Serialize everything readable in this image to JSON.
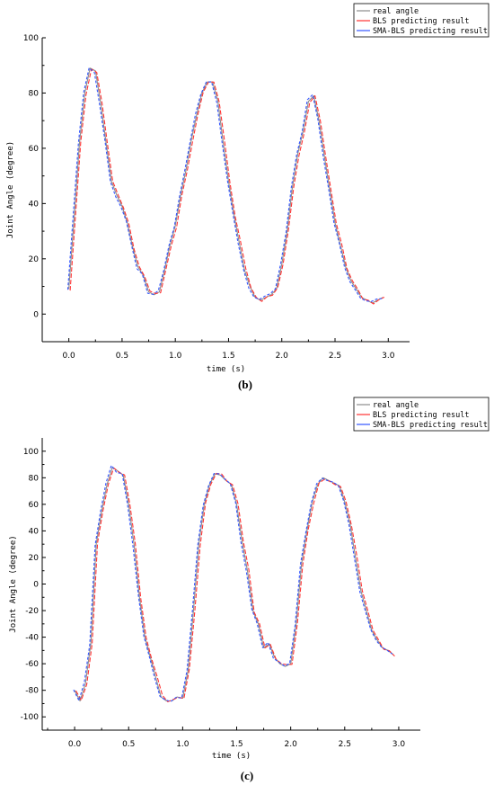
{
  "chart_data": [
    {
      "type": "line",
      "caption": "(b)",
      "xlabel": "time (s)",
      "ylabel": "Joint Angle (degree)",
      "xlim": [
        -0.25,
        3.2
      ],
      "ylim": [
        -10,
        100
      ],
      "xticks": [
        0.0,
        0.5,
        1.0,
        1.5,
        2.0,
        2.5,
        3.0
      ],
      "xtick_labels": [
        "0.0",
        "0.5",
        "1.0",
        "1.5",
        "2.0",
        "2.5",
        "3.0"
      ],
      "yticks": [
        0,
        20,
        40,
        60,
        80,
        100
      ],
      "ytick_labels": [
        "0",
        "20",
        "40",
        "60",
        "80",
        "100"
      ],
      "legend_position": "top-right",
      "series": [
        {
          "name": "real angle",
          "color": "#8c8c8c"
        },
        {
          "name": "BLS predicting result",
          "color": "#ff3333"
        },
        {
          "name": "SMA-BLS predicting result",
          "color": "#3355ff"
        }
      ],
      "x": [
        0.0,
        0.05,
        0.1,
        0.15,
        0.2,
        0.25,
        0.3,
        0.35,
        0.4,
        0.45,
        0.5,
        0.55,
        0.6,
        0.65,
        0.7,
        0.75,
        0.8,
        0.85,
        0.9,
        0.95,
        1.0,
        1.05,
        1.1,
        1.15,
        1.2,
        1.25,
        1.3,
        1.35,
        1.4,
        1.45,
        1.5,
        1.55,
        1.6,
        1.65,
        1.7,
        1.75,
        1.8,
        1.85,
        1.9,
        1.95,
        2.0,
        2.05,
        2.1,
        2.15,
        2.2,
        2.25,
        2.3,
        2.35,
        2.4,
        2.45,
        2.5,
        2.55,
        2.6,
        2.65,
        2.7,
        2.75,
        2.8,
        2.85,
        2.9,
        2.95
      ],
      "values": [
        9,
        35,
        62,
        80,
        89,
        88,
        76,
        62,
        48,
        43,
        39,
        33,
        24,
        17,
        14,
        8,
        7,
        8,
        16,
        25,
        32,
        43,
        52,
        63,
        72,
        80,
        84,
        84,
        77,
        62,
        48,
        36,
        26,
        16,
        10,
        6,
        5,
        6,
        7,
        9,
        18,
        30,
        46,
        58,
        66,
        77,
        79,
        70,
        57,
        45,
        33,
        25,
        17,
        12,
        9,
        6,
        5,
        4,
        5,
        6
      ]
    },
    {
      "type": "line",
      "caption": "(c)",
      "xlabel": "time (s)",
      "ylabel": "Joint Angle (degree)",
      "xlim": [
        -0.3,
        3.2
      ],
      "ylim": [
        -110,
        110
      ],
      "xticks": [
        0.0,
        0.5,
        1.0,
        1.5,
        2.0,
        2.5,
        3.0
      ],
      "xtick_labels": [
        "0.0",
        "0.5",
        "1.0",
        "1.5",
        "2.0",
        "2.5",
        "3.0"
      ],
      "yticks": [
        -100,
        -80,
        -60,
        -40,
        -20,
        0,
        20,
        40,
        60,
        80,
        100
      ],
      "ytick_labels": [
        "-100",
        "-80",
        "-60",
        "-40",
        "-20",
        "0",
        "20",
        "40",
        "60",
        "80",
        "100"
      ],
      "legend_position": "top-right",
      "series": [
        {
          "name": "real angle",
          "color": "#8c8c8c"
        },
        {
          "name": "BLS predicting result",
          "color": "#ff3333"
        },
        {
          "name": "SMA-BLS predicting result",
          "color": "#3355ff"
        }
      ],
      "x": [
        0.0,
        0.05,
        0.1,
        0.15,
        0.2,
        0.25,
        0.3,
        0.35,
        0.4,
        0.45,
        0.5,
        0.55,
        0.6,
        0.65,
        0.7,
        0.75,
        0.8,
        0.85,
        0.9,
        0.95,
        1.0,
        1.05,
        1.1,
        1.15,
        1.2,
        1.25,
        1.3,
        1.35,
        1.4,
        1.45,
        1.5,
        1.55,
        1.6,
        1.65,
        1.7,
        1.75,
        1.8,
        1.85,
        1.9,
        1.95,
        2.0,
        2.05,
        2.1,
        2.15,
        2.2,
        2.25,
        2.3,
        2.35,
        2.4,
        2.45,
        2.5,
        2.55,
        2.6,
        2.65,
        2.7,
        2.75,
        2.8,
        2.85,
        2.9,
        2.95
      ],
      "values": [
        -80,
        -88,
        -75,
        -45,
        30,
        55,
        75,
        88,
        85,
        82,
        60,
        30,
        -10,
        -40,
        -55,
        -70,
        -85,
        -88,
        -88,
        -85,
        -86,
        -65,
        -20,
        30,
        60,
        75,
        83,
        82,
        78,
        75,
        60,
        32,
        10,
        -20,
        -30,
        -48,
        -45,
        -55,
        -60,
        -62,
        -60,
        -30,
        15,
        40,
        62,
        75,
        80,
        78,
        76,
        74,
        62,
        45,
        20,
        -5,
        -20,
        -35,
        -42,
        -48,
        -50,
        -53
      ]
    }
  ]
}
